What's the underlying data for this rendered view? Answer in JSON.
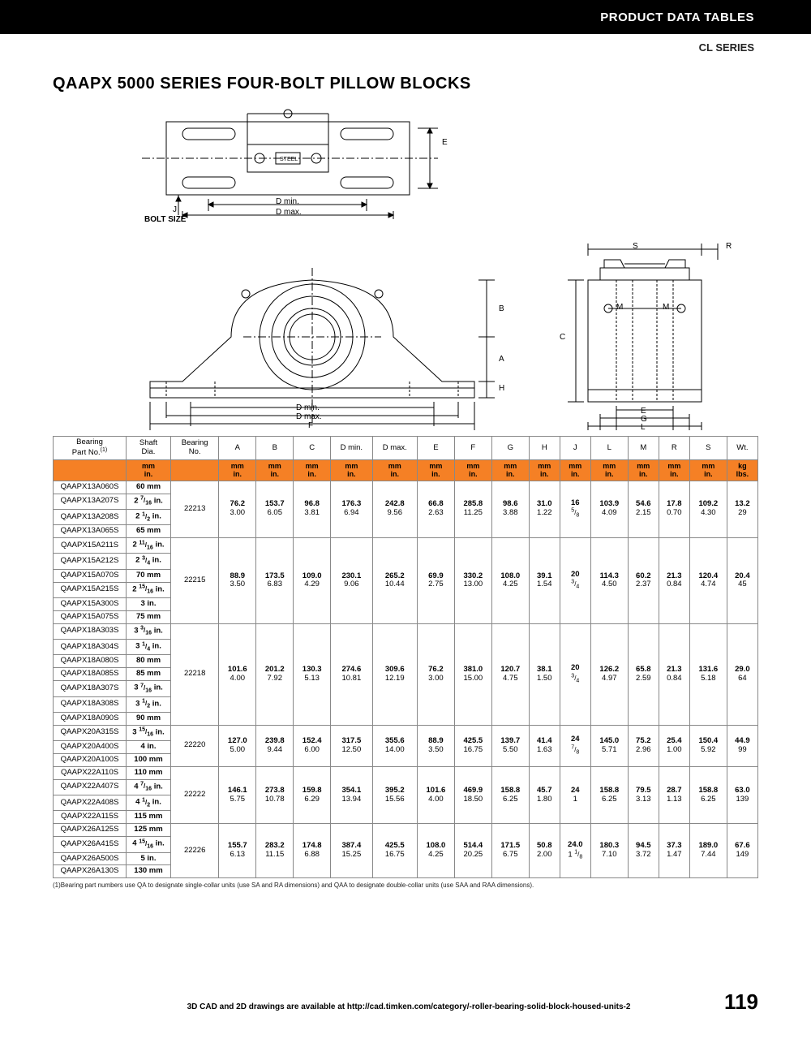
{
  "header": {
    "black_bar_text": "PRODUCT DATA TABLES",
    "series_text": "CL SERIES"
  },
  "title": "QAAPX 5000 SERIES FOUR-BOLT PILLOW BLOCKS",
  "diagram_labels": {
    "bolt_size": "J",
    "bolt_label": "BOLT SIZE",
    "dmin": "D min.",
    "dmax": "D max.",
    "steel": "STEEL",
    "E": "E",
    "F": "F",
    "A": "A",
    "B": "B",
    "H": "H",
    "S": "S",
    "R": "R",
    "M": "M",
    "C": "C",
    "G": "G",
    "L": "L"
  },
  "table": {
    "headers": [
      "Bearing\nPart No.(1)",
      "Shaft\nDia.",
      "Bearing\nNo.",
      "A",
      "B",
      "C",
      "D min.",
      "D max.",
      "E",
      "F",
      "G",
      "H",
      "J",
      "L",
      "M",
      "R",
      "S",
      "Wt."
    ],
    "units_top": [
      "",
      "mm",
      "",
      "mm",
      "mm",
      "mm",
      "mm",
      "mm",
      "mm",
      "mm",
      "mm",
      "mm",
      "mm",
      "mm",
      "mm",
      "mm",
      "mm",
      "kg"
    ],
    "units_bot": [
      "",
      "in.",
      "",
      "in.",
      "in.",
      "in.",
      "in.",
      "in.",
      "in.",
      "in.",
      "in.",
      "in.",
      "in.",
      "in.",
      "in.",
      "in.",
      "in.",
      "lbs."
    ],
    "groups": [
      {
        "parts": [
          {
            "pn": "QAAPX13A060S",
            "shaft": "60 mm"
          },
          {
            "pn": "QAAPX13A207S",
            "shaft": "2 7/16 in."
          },
          {
            "pn": "QAAPX13A208S",
            "shaft": "2 1/2 in."
          },
          {
            "pn": "QAAPX13A065S",
            "shaft": "65 mm"
          }
        ],
        "brg": "22213",
        "vals": [
          [
            "76.2",
            "153.7",
            "96.8",
            "176.3",
            "242.8",
            "66.8",
            "285.8",
            "98.6",
            "31.0",
            "16",
            "103.9",
            "54.6",
            "17.8",
            "109.2",
            "13.2"
          ],
          [
            "3.00",
            "6.05",
            "3.81",
            "6.94",
            "9.56",
            "2.63",
            "11.25",
            "3.88",
            "1.22",
            "5/8",
            "4.09",
            "2.15",
            "0.70",
            "4.30",
            "29"
          ]
        ]
      },
      {
        "parts": [
          {
            "pn": "QAAPX15A211S",
            "shaft": "2 11/16 in."
          },
          {
            "pn": "QAAPX15A212S",
            "shaft": "2 3/4 in."
          },
          {
            "pn": "QAAPX15A070S",
            "shaft": "70 mm"
          },
          {
            "pn": "QAAPX15A215S",
            "shaft": "2 15/16 in."
          },
          {
            "pn": "QAAPX15A300S",
            "shaft": "3 in."
          },
          {
            "pn": "QAAPX15A075S",
            "shaft": "75 mm"
          }
        ],
        "brg": "22215",
        "vals": [
          [
            "88.9",
            "173.5",
            "109.0",
            "230.1",
            "265.2",
            "69.9",
            "330.2",
            "108.0",
            "39.1",
            "20",
            "114.3",
            "60.2",
            "21.3",
            "120.4",
            "20.4"
          ],
          [
            "3.50",
            "6.83",
            "4.29",
            "9.06",
            "10.44",
            "2.75",
            "13.00",
            "4.25",
            "1.54",
            "3/4",
            "4.50",
            "2.37",
            "0.84",
            "4.74",
            "45"
          ]
        ]
      },
      {
        "parts": [
          {
            "pn": "QAAPX18A303S",
            "shaft": "3 3/16 in."
          },
          {
            "pn": "QAAPX18A304S",
            "shaft": "3 1/4 in."
          },
          {
            "pn": "QAAPX18A080S",
            "shaft": "80 mm"
          },
          {
            "pn": "QAAPX18A085S",
            "shaft": "85 mm"
          },
          {
            "pn": "QAAPX18A307S",
            "shaft": "3 7/16 in."
          },
          {
            "pn": "QAAPX18A308S",
            "shaft": "3 1/2 in."
          },
          {
            "pn": "QAAPX18A090S",
            "shaft": "90 mm"
          }
        ],
        "brg": "22218",
        "vals": [
          [
            "101.6",
            "201.2",
            "130.3",
            "274.6",
            "309.6",
            "76.2",
            "381.0",
            "120.7",
            "38.1",
            "20",
            "126.2",
            "65.8",
            "21.3",
            "131.6",
            "29.0"
          ],
          [
            "4.00",
            "7.92",
            "5.13",
            "10.81",
            "12.19",
            "3.00",
            "15.00",
            "4.75",
            "1.50",
            "3/4",
            "4.97",
            "2.59",
            "0.84",
            "5.18",
            "64"
          ]
        ]
      },
      {
        "parts": [
          {
            "pn": "QAAPX20A315S",
            "shaft": "3 15/16 in."
          },
          {
            "pn": "QAAPX20A400S",
            "shaft": "4 in."
          },
          {
            "pn": "QAAPX20A100S",
            "shaft": "100 mm"
          }
        ],
        "brg": "22220",
        "vals": [
          [
            "127.0",
            "239.8",
            "152.4",
            "317.5",
            "355.6",
            "88.9",
            "425.5",
            "139.7",
            "41.4",
            "24",
            "145.0",
            "75.2",
            "25.4",
            "150.4",
            "44.9"
          ],
          [
            "5.00",
            "9.44",
            "6.00",
            "12.50",
            "14.00",
            "3.50",
            "16.75",
            "5.50",
            "1.63",
            "7/8",
            "5.71",
            "2.96",
            "1.00",
            "5.92",
            "99"
          ]
        ]
      },
      {
        "parts": [
          {
            "pn": "QAAPX22A110S",
            "shaft": "110 mm"
          },
          {
            "pn": "QAAPX22A407S",
            "shaft": "4 7/16 in."
          },
          {
            "pn": "QAAPX22A408S",
            "shaft": "4 1/2 in."
          },
          {
            "pn": "QAAPX22A115S",
            "shaft": "115 mm"
          }
        ],
        "brg": "22222",
        "vals": [
          [
            "146.1",
            "273.8",
            "159.8",
            "354.1",
            "395.2",
            "101.6",
            "469.9",
            "158.8",
            "45.7",
            "24",
            "158.8",
            "79.5",
            "28.7",
            "158.8",
            "63.0"
          ],
          [
            "5.75",
            "10.78",
            "6.29",
            "13.94",
            "15.56",
            "4.00",
            "18.50",
            "6.25",
            "1.80",
            "1",
            "6.25",
            "3.13",
            "1.13",
            "6.25",
            "139"
          ]
        ]
      },
      {
        "parts": [
          {
            "pn": "QAAPX26A125S",
            "shaft": "125 mm"
          },
          {
            "pn": "QAAPX26A415S",
            "shaft": "4 15/16 in."
          },
          {
            "pn": "QAAPX26A500S",
            "shaft": "5 in."
          },
          {
            "pn": "QAAPX26A130S",
            "shaft": "130 mm"
          }
        ],
        "brg": "22226",
        "vals": [
          [
            "155.7",
            "283.2",
            "174.8",
            "387.4",
            "425.5",
            "108.0",
            "514.4",
            "171.5",
            "50.8",
            "24.0",
            "180.3",
            "94.5",
            "37.3",
            "189.0",
            "67.6"
          ],
          [
            "6.13",
            "11.15",
            "6.88",
            "15.25",
            "16.75",
            "4.25",
            "20.25",
            "6.75",
            "2.00",
            "1 1/8",
            "7.10",
            "3.72",
            "1.47",
            "7.44",
            "149"
          ]
        ]
      }
    ]
  },
  "footnote": "(1)Bearing part numbers use QA to designate single-collar units (use SA and RA dimensions) and QAA to designate double-collar units (use SAA and RAA dimensions).",
  "footer": {
    "text": "3D CAD and 2D drawings are available at http://cad.timken.com/category/-roller-bearing-solid-block-housed-units-2",
    "page": "119"
  },
  "colors": {
    "orange": "#f58025",
    "black": "#000000",
    "border": "#888888"
  }
}
